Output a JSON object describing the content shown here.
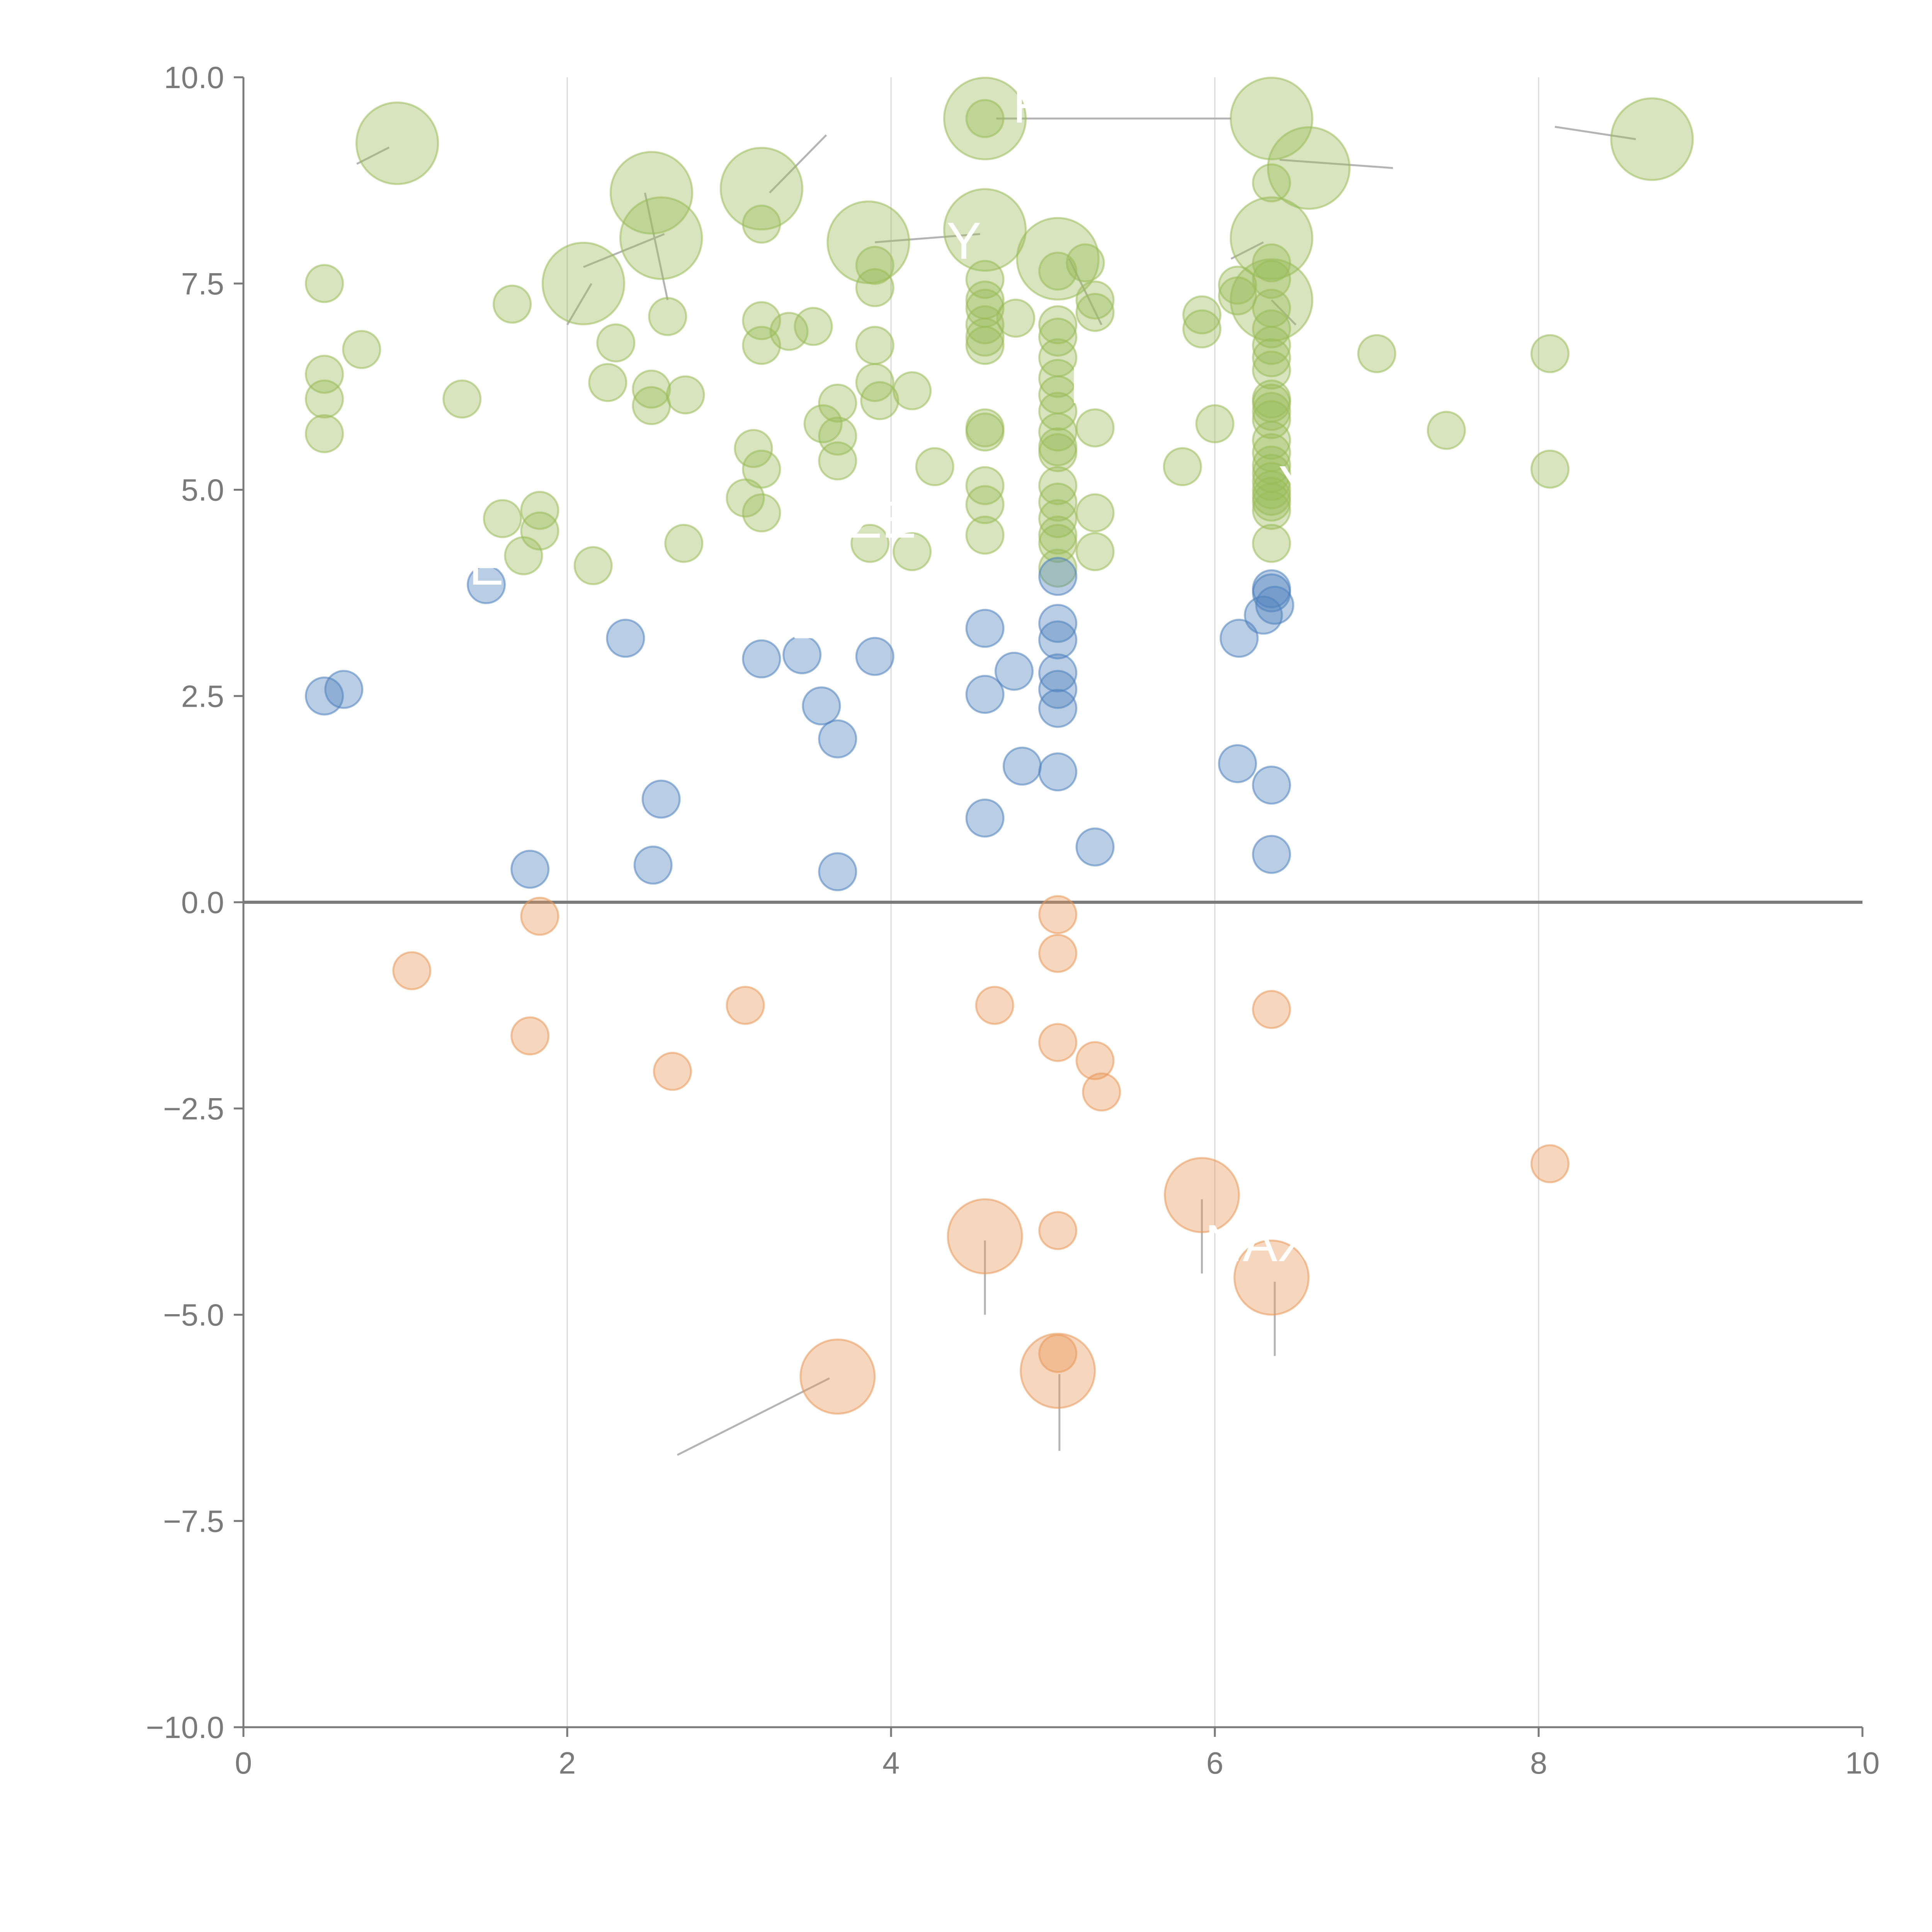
{
  "chart_data": {
    "type": "scatter",
    "title": "",
    "xlabel": "",
    "ylabel": "",
    "xlim": [
      0,
      10
    ],
    "ylim": [
      -10,
      10
    ],
    "grid": "vertical",
    "x_ticks": [
      "0",
      "2",
      "4",
      "6",
      "8",
      "10"
    ],
    "y_ticks": [
      "10.0",
      "7.5",
      "5.0",
      "2.5",
      "0.0",
      "−2.5",
      "−5.0",
      "−7.5",
      "−10.0"
    ],
    "colors": {
      "high": "#9bbb59",
      "mid": "#4f81bd",
      "negative": "#e8995a",
      "axis": "#7a7a7a",
      "grid": "#d9d9d9"
    },
    "series": [
      {
        "color_key": "high",
        "points": [
          {
            "x": 0.95,
            "y": 9.2,
            "r": 2.2
          },
          {
            "x": 4.58,
            "y": 9.5,
            "r": 2.2
          },
          {
            "x": 6.35,
            "y": 9.5,
            "r": 2.2
          },
          {
            "x": 8.7,
            "y": 9.25,
            "r": 2.2
          },
          {
            "x": 2.52,
            "y": 8.6,
            "r": 2.2
          },
          {
            "x": 3.2,
            "y": 8.65,
            "r": 2.2
          },
          {
            "x": 6.58,
            "y": 8.9,
            "r": 2.2
          },
          {
            "x": 2.58,
            "y": 8.05,
            "r": 2.2
          },
          {
            "x": 3.86,
            "y": 8.0,
            "r": 2.2
          },
          {
            "x": 4.58,
            "y": 8.15,
            "r": 2.2
          },
          {
            "x": 6.35,
            "y": 8.05,
            "r": 2.2
          },
          {
            "x": 2.1,
            "y": 7.5,
            "r": 2.2
          },
          {
            "x": 5.03,
            "y": 7.8,
            "r": 2.2
          },
          {
            "x": 6.35,
            "y": 7.3,
            "r": 2.2
          },
          {
            "x": 4.58,
            "y": 9.5,
            "r": 1.0
          },
          {
            "x": 3.2,
            "y": 8.22,
            "r": 1.0
          },
          {
            "x": 6.35,
            "y": 8.72,
            "r": 1.0
          },
          {
            "x": 0.5,
            "y": 7.5,
            "r": 1.0
          },
          {
            "x": 1.66,
            "y": 7.25,
            "r": 1.0
          },
          {
            "x": 2.62,
            "y": 7.1,
            "r": 1.0
          },
          {
            "x": 2.3,
            "y": 6.78,
            "r": 1.0
          },
          {
            "x": 0.73,
            "y": 6.7,
            "r": 1.0
          },
          {
            "x": 3.2,
            "y": 7.05,
            "r": 1.0
          },
          {
            "x": 3.37,
            "y": 6.92,
            "r": 1.0
          },
          {
            "x": 3.52,
            "y": 6.98,
            "r": 1.0
          },
          {
            "x": 3.2,
            "y": 6.75,
            "r": 1.0
          },
          {
            "x": 3.9,
            "y": 7.72,
            "r": 1.0
          },
          {
            "x": 3.9,
            "y": 7.45,
            "r": 1.0
          },
          {
            "x": 3.9,
            "y": 6.75,
            "r": 1.0
          },
          {
            "x": 4.58,
            "y": 7.55,
            "r": 1.0
          },
          {
            "x": 4.58,
            "y": 7.3,
            "r": 1.0
          },
          {
            "x": 4.58,
            "y": 7.2,
            "r": 1.0
          },
          {
            "x": 4.58,
            "y": 7.0,
            "r": 1.0
          },
          {
            "x": 4.58,
            "y": 6.85,
            "r": 1.0
          },
          {
            "x": 4.58,
            "y": 6.75,
            "r": 1.0
          },
          {
            "x": 4.77,
            "y": 7.08,
            "r": 1.0
          },
          {
            "x": 5.03,
            "y": 7.65,
            "r": 1.0
          },
          {
            "x": 5.03,
            "y": 7.0,
            "r": 1.0
          },
          {
            "x": 5.03,
            "y": 6.85,
            "r": 1.0
          },
          {
            "x": 5.03,
            "y": 6.6,
            "r": 1.0
          },
          {
            "x": 5.03,
            "y": 6.35,
            "r": 1.0
          },
          {
            "x": 5.03,
            "y": 6.15,
            "r": 1.0
          },
          {
            "x": 5.03,
            "y": 5.95,
            "r": 1.0
          },
          {
            "x": 5.03,
            "y": 5.7,
            "r": 1.0
          },
          {
            "x": 5.03,
            "y": 5.52,
            "r": 1.0
          },
          {
            "x": 5.03,
            "y": 5.45,
            "r": 1.0
          },
          {
            "x": 5.03,
            "y": 5.05,
            "r": 1.0
          },
          {
            "x": 5.03,
            "y": 4.85,
            "r": 1.0
          },
          {
            "x": 5.03,
            "y": 4.65,
            "r": 1.0
          },
          {
            "x": 5.03,
            "y": 4.45,
            "r": 1.0
          },
          {
            "x": 5.03,
            "y": 4.35,
            "r": 1.0
          },
          {
            "x": 5.03,
            "y": 4.05,
            "r": 1.0
          },
          {
            "x": 5.2,
            "y": 7.75,
            "r": 1.0
          },
          {
            "x": 5.26,
            "y": 7.3,
            "r": 1.0
          },
          {
            "x": 5.26,
            "y": 7.15,
            "r": 1.0
          },
          {
            "x": 5.26,
            "y": 5.75,
            "r": 1.0
          },
          {
            "x": 5.26,
            "y": 4.72,
            "r": 1.0
          },
          {
            "x": 5.26,
            "y": 4.25,
            "r": 1.0
          },
          {
            "x": 5.92,
            "y": 7.12,
            "r": 1.0
          },
          {
            "x": 5.92,
            "y": 6.95,
            "r": 1.0
          },
          {
            "x": 6.14,
            "y": 7.48,
            "r": 1.0
          },
          {
            "x": 6.14,
            "y": 7.35,
            "r": 1.0
          },
          {
            "x": 6.0,
            "y": 5.8,
            "r": 1.0
          },
          {
            "x": 5.8,
            "y": 5.28,
            "r": 1.0
          },
          {
            "x": 6.35,
            "y": 7.75,
            "r": 1.0
          },
          {
            "x": 6.35,
            "y": 7.55,
            "r": 1.0
          },
          {
            "x": 6.35,
            "y": 7.2,
            "r": 1.0
          },
          {
            "x": 6.35,
            "y": 6.95,
            "r": 1.0
          },
          {
            "x": 6.35,
            "y": 6.75,
            "r": 1.0
          },
          {
            "x": 6.35,
            "y": 6.6,
            "r": 1.0
          },
          {
            "x": 6.35,
            "y": 6.45,
            "r": 1.0
          },
          {
            "x": 6.35,
            "y": 6.1,
            "r": 1.0
          },
          {
            "x": 6.35,
            "y": 6.05,
            "r": 1.0
          },
          {
            "x": 6.35,
            "y": 5.95,
            "r": 1.0
          },
          {
            "x": 6.35,
            "y": 5.85,
            "r": 1.0
          },
          {
            "x": 6.35,
            "y": 5.6,
            "r": 1.0
          },
          {
            "x": 6.35,
            "y": 5.45,
            "r": 1.0
          },
          {
            "x": 6.35,
            "y": 5.3,
            "r": 1.0
          },
          {
            "x": 6.35,
            "y": 5.2,
            "r": 1.0
          },
          {
            "x": 6.35,
            "y": 5.1,
            "r": 1.0
          },
          {
            "x": 6.35,
            "y": 5.0,
            "r": 1.0
          },
          {
            "x": 6.35,
            "y": 4.92,
            "r": 1.0
          },
          {
            "x": 6.35,
            "y": 4.85,
            "r": 1.0
          },
          {
            "x": 6.35,
            "y": 4.75,
            "r": 1.0
          },
          {
            "x": 6.35,
            "y": 4.35,
            "r": 1.0
          },
          {
            "x": 7.0,
            "y": 6.65,
            "r": 1.0
          },
          {
            "x": 7.43,
            "y": 5.72,
            "r": 1.0
          },
          {
            "x": 8.07,
            "y": 6.65,
            "r": 1.0
          },
          {
            "x": 8.07,
            "y": 5.25,
            "r": 1.0
          },
          {
            "x": 0.5,
            "y": 6.4,
            "r": 1.0
          },
          {
            "x": 0.5,
            "y": 6.1,
            "r": 1.0
          },
          {
            "x": 0.5,
            "y": 5.68,
            "r": 1.0
          },
          {
            "x": 1.35,
            "y": 6.1,
            "r": 1.0
          },
          {
            "x": 2.25,
            "y": 6.3,
            "r": 1.0
          },
          {
            "x": 2.52,
            "y": 6.22,
            "r": 1.0
          },
          {
            "x": 2.52,
            "y": 6.02,
            "r": 1.0
          },
          {
            "x": 2.73,
            "y": 6.15,
            "r": 1.0
          },
          {
            "x": 3.15,
            "y": 5.5,
            "r": 1.0
          },
          {
            "x": 3.2,
            "y": 5.25,
            "r": 1.0
          },
          {
            "x": 3.1,
            "y": 4.9,
            "r": 1.0
          },
          {
            "x": 3.2,
            "y": 4.72,
            "r": 1.0
          },
          {
            "x": 3.58,
            "y": 5.8,
            "r": 1.0
          },
          {
            "x": 3.67,
            "y": 6.05,
            "r": 1.0
          },
          {
            "x": 3.67,
            "y": 5.65,
            "r": 1.0
          },
          {
            "x": 3.67,
            "y": 5.35,
            "r": 1.0
          },
          {
            "x": 3.9,
            "y": 6.3,
            "r": 1.0
          },
          {
            "x": 3.93,
            "y": 6.08,
            "r": 1.0
          },
          {
            "x": 4.13,
            "y": 6.2,
            "r": 1.0
          },
          {
            "x": 4.58,
            "y": 5.75,
            "r": 1.0
          },
          {
            "x": 4.58,
            "y": 5.7,
            "r": 1.0
          },
          {
            "x": 4.58,
            "y": 5.05,
            "r": 1.0
          },
          {
            "x": 4.58,
            "y": 4.82,
            "r": 1.0
          },
          {
            "x": 4.58,
            "y": 4.45,
            "r": 1.0
          },
          {
            "x": 4.27,
            "y": 5.28,
            "r": 1.0
          },
          {
            "x": 1.6,
            "y": 4.65,
            "r": 1.0
          },
          {
            "x": 1.83,
            "y": 4.75,
            "r": 1.0
          },
          {
            "x": 1.83,
            "y": 4.5,
            "r": 1.0
          },
          {
            "x": 1.73,
            "y": 4.2,
            "r": 1.0
          },
          {
            "x": 2.16,
            "y": 4.08,
            "r": 1.0
          },
          {
            "x": 2.72,
            "y": 4.35,
            "r": 1.0
          },
          {
            "x": 3.87,
            "y": 4.35,
            "r": 1.0
          },
          {
            "x": 4.13,
            "y": 4.25,
            "r": 1.0
          }
        ]
      },
      {
        "color_key": "mid",
        "points": [
          {
            "x": 1.5,
            "y": 3.85,
            "r": 1.0
          },
          {
            "x": 0.5,
            "y": 2.5,
            "r": 1.0
          },
          {
            "x": 0.62,
            "y": 2.58,
            "r": 1.0
          },
          {
            "x": 2.36,
            "y": 3.2,
            "r": 1.0
          },
          {
            "x": 3.2,
            "y": 2.95,
            "r": 1.0
          },
          {
            "x": 3.45,
            "y": 3.0,
            "r": 1.0
          },
          {
            "x": 3.9,
            "y": 2.98,
            "r": 1.0
          },
          {
            "x": 3.57,
            "y": 2.38,
            "r": 1.0
          },
          {
            "x": 3.67,
            "y": 1.98,
            "r": 1.0
          },
          {
            "x": 2.58,
            "y": 1.25,
            "r": 1.0
          },
          {
            "x": 1.77,
            "y": 0.4,
            "r": 1.0
          },
          {
            "x": 2.53,
            "y": 0.45,
            "r": 1.0
          },
          {
            "x": 3.67,
            "y": 0.37,
            "r": 1.0
          },
          {
            "x": 4.58,
            "y": 3.32,
            "r": 1.0
          },
          {
            "x": 4.58,
            "y": 2.52,
            "r": 1.0
          },
          {
            "x": 4.76,
            "y": 2.8,
            "r": 1.0
          },
          {
            "x": 4.81,
            "y": 1.65,
            "r": 1.0
          },
          {
            "x": 4.58,
            "y": 1.02,
            "r": 1.0
          },
          {
            "x": 5.03,
            "y": 3.95,
            "r": 1.0
          },
          {
            "x": 5.03,
            "y": 3.38,
            "r": 1.0
          },
          {
            "x": 5.03,
            "y": 3.18,
            "r": 1.0
          },
          {
            "x": 5.03,
            "y": 2.78,
            "r": 1.0
          },
          {
            "x": 5.03,
            "y": 2.58,
            "r": 1.0
          },
          {
            "x": 5.03,
            "y": 2.35,
            "r": 1.0
          },
          {
            "x": 5.03,
            "y": 1.58,
            "r": 1.0
          },
          {
            "x": 5.26,
            "y": 0.67,
            "r": 1.0
          },
          {
            "x": 6.15,
            "y": 3.2,
            "r": 1.0
          },
          {
            "x": 6.3,
            "y": 3.48,
            "r": 1.0
          },
          {
            "x": 6.35,
            "y": 3.8,
            "r": 1.0
          },
          {
            "x": 6.35,
            "y": 3.75,
            "r": 1.0
          },
          {
            "x": 6.37,
            "y": 3.6,
            "r": 1.0
          },
          {
            "x": 6.14,
            "y": 1.68,
            "r": 1.0
          },
          {
            "x": 6.35,
            "y": 1.42,
            "r": 1.0
          },
          {
            "x": 6.35,
            "y": 0.58,
            "r": 1.0
          }
        ]
      },
      {
        "color_key": "negative",
        "points": [
          {
            "x": 1.83,
            "y": -0.17,
            "r": 1.0
          },
          {
            "x": 1.04,
            "y": -0.83,
            "r": 1.0
          },
          {
            "x": 1.77,
            "y": -1.62,
            "r": 1.0
          },
          {
            "x": 3.1,
            "y": -1.25,
            "r": 1.0
          },
          {
            "x": 2.65,
            "y": -2.05,
            "r": 1.0
          },
          {
            "x": 4.64,
            "y": -1.25,
            "r": 1.0
          },
          {
            "x": 5.03,
            "y": -0.15,
            "r": 1.0
          },
          {
            "x": 5.03,
            "y": -0.62,
            "r": 1.0
          },
          {
            "x": 5.03,
            "y": -1.7,
            "r": 1.0
          },
          {
            "x": 5.26,
            "y": -1.92,
            "r": 1.0
          },
          {
            "x": 5.3,
            "y": -2.3,
            "r": 1.0
          },
          {
            "x": 6.35,
            "y": -1.3,
            "r": 1.0
          },
          {
            "x": 8.07,
            "y": -3.17,
            "r": 1.0
          },
          {
            "x": 5.03,
            "y": -3.98,
            "r": 1.0
          },
          {
            "x": 5.03,
            "y": -5.47,
            "r": 1.0
          },
          {
            "x": 5.92,
            "y": -3.55,
            "r": 2.0
          },
          {
            "x": 4.58,
            "y": -4.05,
            "r": 2.0
          },
          {
            "x": 6.35,
            "y": -4.55,
            "r": 2.0
          },
          {
            "x": 3.67,
            "y": -5.75,
            "r": 2.0
          },
          {
            "x": 5.03,
            "y": -5.68,
            "r": 2.0
          }
        ]
      }
    ],
    "leaders": [
      {
        "x1": 3.62,
        "y1": -5.77,
        "x2": 2.68,
        "y2": -6.7
      },
      {
        "x1": 4.58,
        "y1": -4.1,
        "x2": 4.58,
        "y2": -5.0
      },
      {
        "x1": 5.92,
        "y1": -3.6,
        "x2": 5.92,
        "y2": -4.5
      },
      {
        "x1": 6.37,
        "y1": -4.6,
        "x2": 6.37,
        "y2": -5.5
      },
      {
        "x1": 5.04,
        "y1": -5.72,
        "x2": 5.04,
        "y2": -6.65
      },
      {
        "x1": 0.9,
        "y1": 9.15,
        "x2": 0.7,
        "y2": 8.95
      },
      {
        "x1": 2.48,
        "y1": 8.6,
        "x2": 2.62,
        "y2": 7.3
      },
      {
        "x1": 2.6,
        "y1": 8.1,
        "x2": 2.1,
        "y2": 7.7
      },
      {
        "x1": 3.25,
        "y1": 8.6,
        "x2": 3.6,
        "y2": 9.3
      },
      {
        "x1": 4.65,
        "y1": 9.5,
        "x2": 6.1,
        "y2": 9.5
      },
      {
        "x1": 6.4,
        "y1": 9.0,
        "x2": 7.1,
        "y2": 8.9
      },
      {
        "x1": 8.6,
        "y1": 9.25,
        "x2": 8.1,
        "y2": 9.4
      },
      {
        "x1": 3.9,
        "y1": 8.0,
        "x2": 4.55,
        "y2": 8.1
      },
      {
        "x1": 5.1,
        "y1": 7.8,
        "x2": 5.3,
        "y2": 7.0
      },
      {
        "x1": 6.3,
        "y1": 8.0,
        "x2": 6.1,
        "y2": 7.8
      },
      {
        "x1": 6.35,
        "y1": 7.3,
        "x2": 6.5,
        "y2": 7.0
      },
      {
        "x1": 2.15,
        "y1": 7.5,
        "x2": 2.0,
        "y2": 7.0
      }
    ],
    "labels": [
      {
        "text": "NAX",
        "x": 6.27,
        "y": -4.35
      },
      {
        "text": "ZE",
        "x": 3.95,
        "y": 4.42
      },
      {
        "text": "LE",
        "x": 5.3,
        "y": 6.05
      },
      {
        "text": "Y",
        "x": 6.5,
        "y": 4.85
      },
      {
        "text": "F",
        "x": 4.85,
        "y": 9.45
      },
      {
        "text": "Y",
        "x": 4.45,
        "y": 7.8
      },
      {
        "text": "E",
        "x": 1.5,
        "y": 3.85
      },
      {
        "text": "ME",
        "x": 3.35,
        "y": 3.2
      }
    ]
  }
}
